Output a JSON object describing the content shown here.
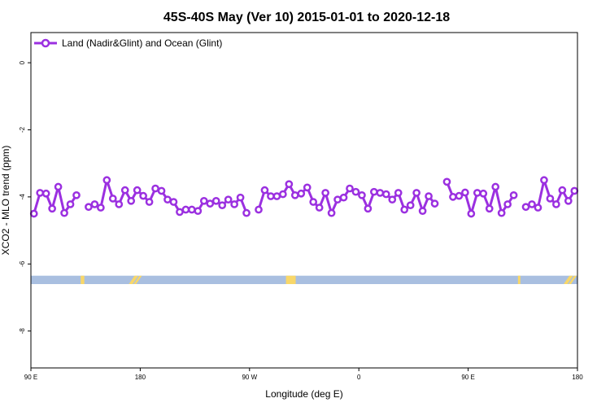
{
  "chart_data": {
    "type": "line",
    "title": "45S-40S May (Ver 10)   2015-01-01 to 2020-12-18",
    "xlabel": "Longitude (deg E)",
    "ylabel": "XCO2 - MLO trend (ppm)",
    "x_axis_unwrapped_range": [
      90,
      450
    ],
    "xlim_labels": [
      "90 E",
      "180"
    ],
    "x_ticks": [
      {
        "value": 90,
        "label": "90 E"
      },
      {
        "value": 180,
        "label": "180"
      },
      {
        "value": 270,
        "label": "90 W"
      },
      {
        "value": 360,
        "label": "0"
      },
      {
        "value": 450,
        "label": "90 E"
      },
      {
        "value": 540,
        "label": "180"
      }
    ],
    "x_range": [
      90,
      540
    ],
    "ylim": [
      -9.1,
      0.9
    ],
    "y_ticks": [
      0,
      -2,
      -4,
      -6,
      -8
    ],
    "grid": false,
    "legend_position": "top-left",
    "line_color": "#9b30e0",
    "series": [
      {
        "name": "Land (Nadir&Glint) and Ocean (Glint)",
        "color": "#9b30e0",
        "segments": [
          {
            "x": [
              92.5,
              97.5,
              102.5,
              107.5,
              112.5,
              117.5,
              122.5,
              127.5,
              132.5
            ],
            "y": [
              -4.5,
              -3.9,
              -3.9,
              -4.35,
              -3.7,
              -4.5,
              -4.2,
              -3.95,
              null
            ]
          }
        ],
        "points": [
          [
            92.5,
            -4.5
          ],
          [
            97.5,
            -3.88
          ],
          [
            102.5,
            -3.9
          ],
          [
            107.5,
            -4.35
          ],
          [
            112.5,
            -3.7
          ],
          [
            117.5,
            -4.48
          ],
          [
            122.5,
            -4.22
          ],
          [
            127.5,
            -3.95
          ],
          [
            137.5,
            -4.3
          ],
          [
            142.5,
            -4.22
          ],
          [
            147.5,
            -4.32
          ],
          [
            152.5,
            -3.5
          ],
          [
            157.5,
            -4.05
          ],
          [
            162.5,
            -4.22
          ],
          [
            167.5,
            -3.8
          ],
          [
            172.5,
            -4.12
          ],
          [
            177.5,
            -3.8
          ],
          [
            182.5,
            -3.97
          ],
          [
            187.5,
            -4.15
          ],
          [
            192.5,
            -3.75
          ],
          [
            197.5,
            -3.82
          ],
          [
            202.5,
            -4.08
          ],
          [
            207.5,
            -4.15
          ],
          [
            212.5,
            -4.45
          ],
          [
            217.5,
            -4.38
          ],
          [
            222.5,
            -4.38
          ],
          [
            227.5,
            -4.42
          ],
          [
            232.5,
            -4.12
          ],
          [
            237.5,
            -4.2
          ],
          [
            242.5,
            -4.12
          ],
          [
            247.5,
            -4.25
          ],
          [
            252.5,
            -4.08
          ],
          [
            257.5,
            -4.22
          ],
          [
            262.5,
            -4.02
          ],
          [
            267.5,
            -4.48
          ],
          [
            277.5,
            -4.38
          ],
          [
            282.5,
            -3.8
          ],
          [
            287.5,
            -3.98
          ],
          [
            292.5,
            -3.98
          ],
          [
            297.5,
            -3.92
          ],
          [
            302.5,
            -3.62
          ],
          [
            307.5,
            -3.95
          ],
          [
            312.5,
            -3.9
          ],
          [
            317.5,
            -3.72
          ],
          [
            322.5,
            -4.15
          ],
          [
            327.5,
            -4.32
          ],
          [
            332.5,
            -3.88
          ],
          [
            337.5,
            -4.48
          ],
          [
            342.5,
            -4.08
          ],
          [
            347.5,
            -4.02
          ],
          [
            352.5,
            -3.75
          ],
          [
            357.5,
            -3.85
          ],
          [
            362.5,
            -3.95
          ],
          [
            367.5,
            -4.35
          ],
          [
            372.5,
            -3.85
          ],
          [
            377.5,
            -3.88
          ],
          [
            382.5,
            -3.92
          ],
          [
            387.5,
            -4.08
          ],
          [
            392.5,
            -3.88
          ],
          [
            397.5,
            -4.38
          ],
          [
            402.5,
            -4.25
          ],
          [
            407.5,
            -3.88
          ],
          [
            412.5,
            -4.42
          ],
          [
            417.5,
            -3.98
          ],
          [
            422.5,
            -4.2
          ],
          [
            432.5,
            -3.55
          ],
          [
            437.5,
            -4.0
          ],
          [
            442.5,
            -3.97
          ],
          [
            447.5,
            -3.87
          ],
          [
            452.5,
            -4.5
          ],
          [
            457.5,
            -3.88
          ],
          [
            462.5,
            -3.9
          ],
          [
            467.5,
            -4.35
          ],
          [
            472.5,
            -3.7
          ],
          [
            477.5,
            -4.48
          ],
          [
            482.5,
            -4.22
          ],
          [
            487.5,
            -3.95
          ],
          [
            497.5,
            -4.3
          ],
          [
            502.5,
            -4.22
          ],
          [
            507.5,
            -4.32
          ],
          [
            512.5,
            -3.5
          ],
          [
            517.5,
            -4.05
          ],
          [
            522.5,
            -4.22
          ],
          [
            527.5,
            -3.8
          ],
          [
            532.5,
            -4.12
          ],
          [
            537.5,
            -3.82
          ]
        ],
        "breaks_after_x": [
          127.5,
          267.5,
          422.5,
          487.5
        ]
      }
    ],
    "land_ocean_strip": {
      "y_range": [
        -6.6,
        -6.35
      ],
      "ocean_color": "#a9bfe0",
      "land_color": "#f8d769"
    }
  }
}
